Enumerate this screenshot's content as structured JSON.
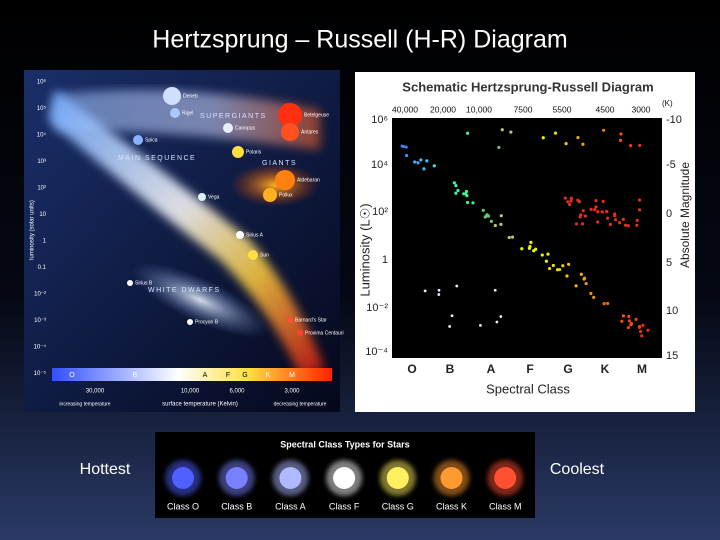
{
  "title": "Hertzsprung – Russell (H-R) Diagram",
  "side_labels": {
    "left": "Hottest",
    "right": "Coolest"
  },
  "left_diagram": {
    "regions": [
      "SUPERGIANTS",
      "GIANTS",
      "MAIN SEQUENCE",
      "WHITE DWARFS"
    ],
    "y_label": "luminosity (solar units)",
    "x_label": "surface temperature (Kelvin)",
    "x_left_note": "increasing temperature",
    "x_right_note": "decreasing temperature",
    "y_ticks": [
      "10⁶",
      "10⁵",
      "10⁴",
      "10³",
      "10²",
      "10",
      "1",
      "0.1",
      "10⁻²",
      "10⁻³",
      "10⁻⁴",
      "10⁻⁵"
    ],
    "classes": [
      "O",
      "B",
      "A",
      "F",
      "G",
      "K",
      "M"
    ],
    "temps": [
      "30,000",
      "10,000",
      "6,000",
      "3,000"
    ],
    "stars": [
      "Deneb",
      "Rigel",
      "Betelgeuse",
      "Antares",
      "Canopus",
      "Polaris",
      "Aldebaran",
      "Pollux",
      "Vega",
      "Sirius A",
      "Sirius B",
      "Spica",
      "Procyon B",
      "Sun",
      "Proxima Centauri",
      "Barnard's Star"
    ]
  },
  "right_diagram": {
    "title": "Schematic Hertzsprung-Russell Diagram",
    "temps": [
      "40,000",
      "20,000",
      "10,000",
      "7500",
      "5500",
      "4500",
      "3000"
    ],
    "temp_unit": "(K)",
    "y_label": "Luminosity (L☉)",
    "y_ticks": [
      "10⁶",
      "10⁴",
      "10²",
      "1",
      "10⁻²",
      "10⁻⁴"
    ],
    "y2_label": "Absolute Magnitude",
    "y2_ticks": [
      "-10",
      "-5",
      "0",
      "5",
      "10",
      "15"
    ],
    "x_label": "Spectral Class",
    "classes": [
      "O",
      "B",
      "A",
      "F",
      "G",
      "K",
      "M"
    ]
  },
  "spectral_strip": {
    "title": "Spectral Class Types for Stars",
    "classes": [
      "Class O",
      "Class B",
      "Class A",
      "Class F",
      "Class G",
      "Class K",
      "Class M"
    ]
  }
}
